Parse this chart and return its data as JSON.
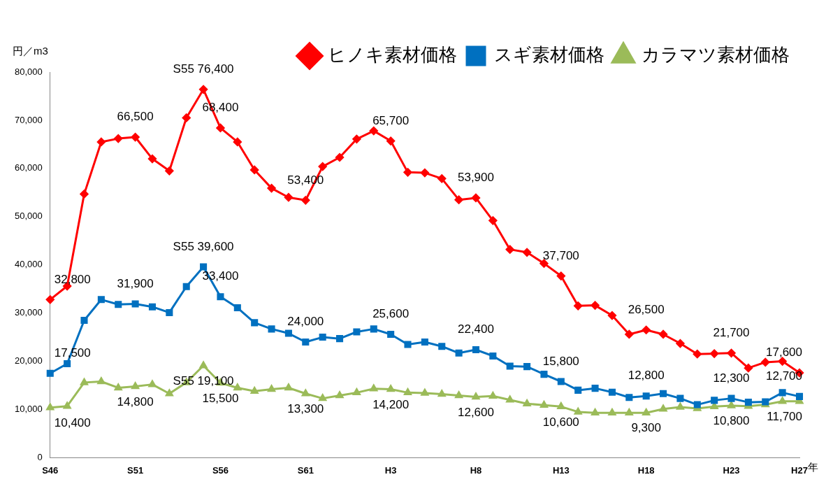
{
  "chart_data": {
    "type": "line",
    "ylabel": "円／m3",
    "xlabel": "年",
    "categories": [
      "S46",
      null,
      null,
      null,
      null,
      "S51",
      null,
      null,
      null,
      null,
      "S56",
      null,
      null,
      null,
      null,
      "S61",
      null,
      null,
      null,
      null,
      "H3",
      null,
      null,
      null,
      null,
      "H8",
      null,
      null,
      null,
      null,
      "H13",
      null,
      null,
      null,
      null,
      "H18",
      null,
      null,
      null,
      null,
      "H23",
      null,
      null,
      null,
      "H27"
    ],
    "ylim": [
      0,
      80000
    ],
    "yticks": [
      {
        "value": 0,
        "label": "0"
      },
      {
        "value": 10000,
        "label": "10,000"
      },
      {
        "value": 20000,
        "label": "20,000"
      },
      {
        "value": 30000,
        "label": "30,000"
      },
      {
        "value": 40000,
        "label": "40,000"
      },
      {
        "value": 50000,
        "label": "50,000"
      },
      {
        "value": 60000,
        "label": "60,000"
      },
      {
        "value": 70000,
        "label": "70,000"
      },
      {
        "value": 80000,
        "label": "80,000"
      }
    ],
    "grid": false,
    "legend": "top right",
    "line_style": "solid",
    "series": [
      {
        "name": "ヒノキ素材価格",
        "color": "#ff0000",
        "marker": "diamond",
        "values": [
          32800,
          35600,
          54700,
          65500,
          66200,
          66500,
          62000,
          59500,
          70500,
          76400,
          68400,
          65500,
          59700,
          55900,
          54000,
          53400,
          60400,
          62300,
          66100,
          67800,
          65700,
          59200,
          59100,
          57900,
          53500,
          53900,
          49200,
          43200,
          42600,
          40300,
          37700,
          31500,
          31600,
          29500,
          25600,
          26500,
          25600,
          23700,
          21500,
          21600,
          21700,
          18600,
          19800,
          20000,
          17600
        ],
        "value_labels": [
          "32,800",
          null,
          null,
          null,
          null,
          "66,500",
          null,
          null,
          null,
          "S55 76,400",
          "68,400",
          null,
          null,
          null,
          null,
          "53,400",
          null,
          null,
          null,
          null,
          "65,700",
          null,
          null,
          null,
          null,
          "53,900",
          null,
          null,
          null,
          null,
          "37,700",
          null,
          null,
          null,
          null,
          "26,500",
          null,
          null,
          null,
          null,
          "21,700",
          null,
          null,
          null,
          "17,600"
        ]
      },
      {
        "name": "スギ素材価格",
        "color": "#0070c0",
        "marker": "square",
        "values": [
          17500,
          19500,
          28500,
          32800,
          31800,
          31900,
          31300,
          30100,
          35500,
          39600,
          33400,
          31100,
          28000,
          26700,
          25800,
          24000,
          25000,
          24700,
          26100,
          26700,
          25600,
          23500,
          24000,
          23100,
          21700,
          22400,
          21100,
          19000,
          18900,
          17300,
          15800,
          14000,
          14400,
          13600,
          12500,
          12800,
          13300,
          12300,
          11000,
          11900,
          12300,
          11500,
          11600,
          13500,
          12700
        ],
        "value_labels": [
          "17,500",
          null,
          null,
          null,
          null,
          "31,900",
          null,
          null,
          null,
          "S55 39,600",
          "33,400",
          null,
          null,
          null,
          null,
          "24,000",
          null,
          null,
          null,
          null,
          "25,600",
          null,
          null,
          null,
          null,
          "22,400",
          null,
          null,
          null,
          null,
          "15,800",
          null,
          null,
          null,
          null,
          "12,800",
          null,
          null,
          null,
          null,
          "12,300",
          null,
          null,
          null,
          "12,700"
        ]
      },
      {
        "name": "カラマツ素材価格",
        "color": "#9bbb59",
        "marker": "triangle",
        "values": [
          10400,
          10700,
          15600,
          15800,
          14500,
          14800,
          15200,
          13300,
          15600,
          19100,
          15500,
          14500,
          13800,
          14200,
          14500,
          13300,
          12300,
          12900,
          13500,
          14300,
          14200,
          13500,
          13400,
          13200,
          12900,
          12600,
          12800,
          12000,
          11200,
          10900,
          10600,
          9500,
          9300,
          9300,
          9300,
          9300,
          10100,
          10500,
          10200,
          10600,
          10800,
          10700,
          11000,
          11700,
          11700
        ],
        "value_labels": [
          "10,400",
          null,
          null,
          null,
          null,
          "14,800",
          null,
          null,
          null,
          "S55 19,100",
          "15,500",
          null,
          null,
          null,
          null,
          "13,300",
          null,
          null,
          null,
          null,
          "14,200",
          null,
          null,
          null,
          null,
          "12,600",
          null,
          null,
          null,
          null,
          "10,600",
          null,
          null,
          null,
          null,
          "9,300",
          null,
          null,
          null,
          null,
          "10,800",
          null,
          null,
          null,
          "11,700"
        ]
      }
    ]
  }
}
